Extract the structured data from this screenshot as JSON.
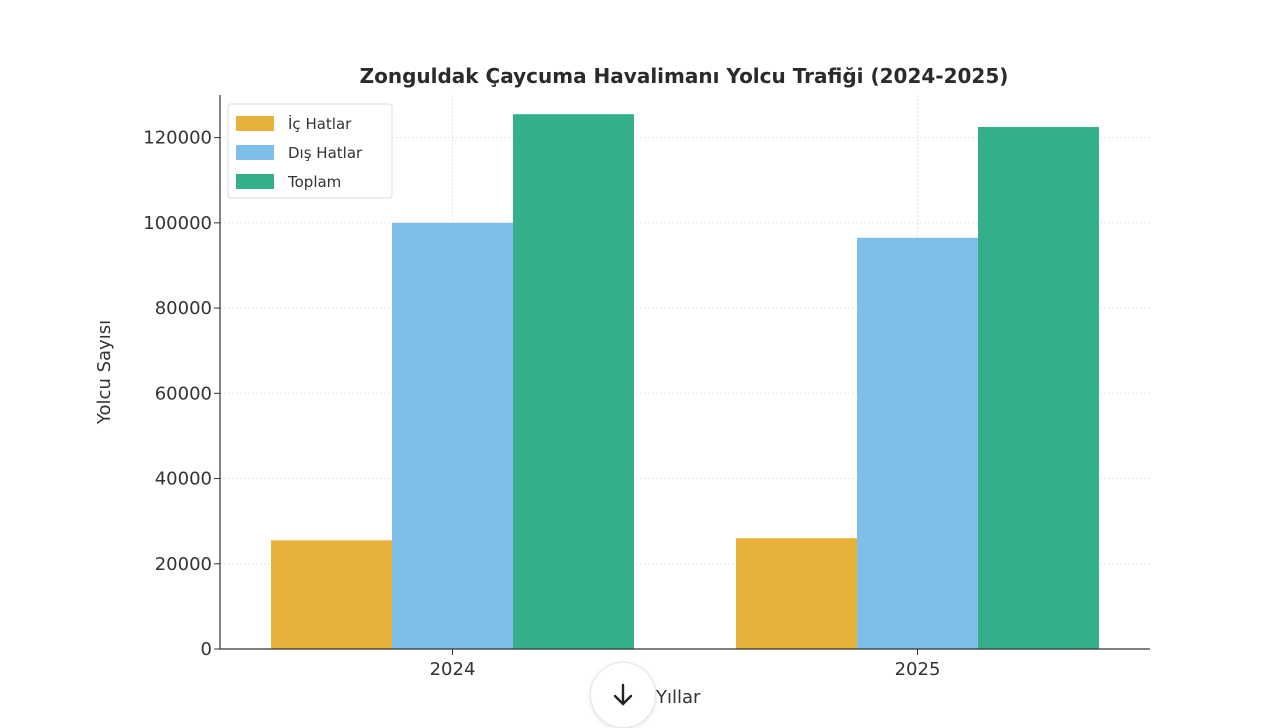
{
  "chart_data": {
    "type": "bar",
    "title": "Zonguldak Çaycuma Havalimanı Yolcu Trafiği (2024-2025)",
    "xlabel": "Yıllar",
    "ylabel": "Yolcu Sayısı",
    "categories": [
      "2024",
      "2025"
    ],
    "series": [
      {
        "name": "İç Hatlar",
        "color": "#E8B23A",
        "values": [
          25500,
          26000
        ]
      },
      {
        "name": "Dış Hatlar",
        "color": "#7DBFE8",
        "values": [
          100000,
          96500
        ]
      },
      {
        "name": "Toplam",
        "color": "#33B08A",
        "values": [
          125500,
          122500
        ]
      }
    ],
    "ylim": [
      0,
      130000
    ],
    "yticks": [
      0,
      20000,
      40000,
      60000,
      80000,
      100000,
      120000
    ],
    "grid": true,
    "legend_position": "top-left"
  },
  "overlay": {
    "scroll_icon": "arrow-down-icon"
  }
}
